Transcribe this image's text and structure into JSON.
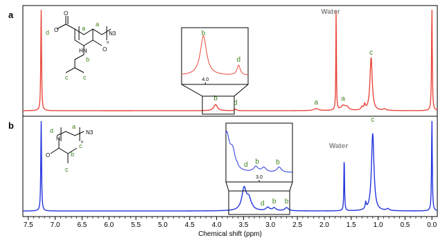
{
  "chart_data": {
    "type": "line",
    "xlabel": "Chemical shift (ppm)",
    "xlim": [
      7.6,
      -0.1
    ],
    "x_reversed": true,
    "grid": false,
    "x_ticks": [
      7.5,
      7.0,
      6.5,
      6.0,
      5.5,
      5.0,
      4.5,
      4.0,
      3.5,
      3.0,
      2.5,
      2.0,
      1.5,
      1.0,
      0.5,
      0.0
    ],
    "x_tick_labels": [
      "7.5",
      "7.0",
      "6.5",
      "6.0",
      "5.5",
      "5.0",
      "4.5",
      "4.0",
      "3.5",
      "3.0",
      "2.5",
      "2.0",
      "1.5",
      "1.0",
      "0.5",
      "0.0"
    ],
    "panels": [
      {
        "label": "a",
        "color": "#e8473a",
        "peaks": [
          {
            "x": 7.26,
            "h": 1.0,
            "w": 0.008
          },
          {
            "x": 4.02,
            "h": 0.06,
            "w": 0.04
          },
          {
            "x": 3.65,
            "h": 0.015,
            "w": 0.02
          },
          {
            "x": 2.15,
            "h": 0.02,
            "w": 0.05
          },
          {
            "x": 1.65,
            "h": 0.045,
            "w": 0.05
          },
          {
            "x": 1.58,
            "h": 0.03,
            "w": 0.04
          },
          {
            "x": 1.78,
            "h": 1.0,
            "w": 0.006
          },
          {
            "x": 1.3,
            "h": 0.03,
            "w": 0.02
          },
          {
            "x": 1.25,
            "h": 0.05,
            "w": 0.015
          },
          {
            "x": 1.13,
            "h": 0.52,
            "w": 0.025
          },
          {
            "x": 0.88,
            "h": 0.015,
            "w": 0.03
          },
          {
            "x": 0.0,
            "h": 1.0,
            "w": 0.008
          }
        ],
        "annotations": [
          {
            "text": "Water",
            "x": 1.78,
            "kind": "label-gray"
          },
          {
            "text": "b",
            "x": 4.02,
            "kind": "label"
          },
          {
            "text": "d",
            "x": 3.65,
            "kind": "label"
          },
          {
            "text": "a",
            "x": 2.15,
            "kind": "label"
          },
          {
            "text": "a",
            "x": 1.65,
            "kind": "label"
          },
          {
            "text": "c",
            "x": 1.13,
            "kind": "label"
          }
        ],
        "inset": {
          "xlim": [
            4.25,
            3.55
          ],
          "tick": 4.0,
          "tick_label": "4.0",
          "peak_labels": [
            {
              "text": "b",
              "x": 4.02
            },
            {
              "text": "d",
              "x": 3.65
            }
          ]
        }
      },
      {
        "label": "b",
        "color": "#2233dd",
        "peaks": [
          {
            "x": 7.26,
            "h": 1.0,
            "w": 0.008
          },
          {
            "x": 3.49,
            "h": 0.24,
            "w": 0.05
          },
          {
            "x": 3.4,
            "h": 0.12,
            "w": 0.05
          },
          {
            "x": 3.33,
            "h": 0.01,
            "w": 0.01
          },
          {
            "x": 3.05,
            "h": 0.035,
            "w": 0.04
          },
          {
            "x": 2.93,
            "h": 0.03,
            "w": 0.04
          },
          {
            "x": 2.7,
            "h": 0.035,
            "w": 0.04
          },
          {
            "x": 1.63,
            "h": 0.6,
            "w": 0.007
          },
          {
            "x": 1.23,
            "h": 0.07,
            "w": 0.012
          },
          {
            "x": 1.1,
            "h": 0.85,
            "w": 0.028
          },
          {
            "x": 0.82,
            "h": 0.02,
            "w": 0.03
          },
          {
            "x": 0.0,
            "h": 1.0,
            "w": 0.008
          }
        ],
        "annotations": [
          {
            "text": "Water",
            "x": 1.63,
            "kind": "label-gray"
          },
          {
            "text": "a",
            "x": 3.49,
            "kind": "label"
          },
          {
            "text": "d",
            "x": 3.15,
            "kind": "label"
          },
          {
            "text": "b",
            "x": 2.93,
            "kind": "label"
          },
          {
            "text": "b",
            "x": 2.7,
            "kind": "label"
          },
          {
            "text": "c",
            "x": 1.1,
            "kind": "label"
          }
        ],
        "inset": {
          "xlim": [
            3.5,
            2.5
          ],
          "tick": 3.0,
          "tick_label": "3.0",
          "peak_labels": [
            {
              "text": "d",
              "x": 3.2
            },
            {
              "text": "b",
              "x": 3.03
            },
            {
              "text": "b",
              "x": 2.72
            }
          ]
        }
      }
    ],
    "structures": [
      {
        "panel": "a",
        "labels": [
          "d",
          "a",
          "a",
          "N3",
          "n",
          "b",
          "c",
          "c"
        ],
        "atoms": [
          "O",
          "O",
          "HN",
          "O"
        ]
      },
      {
        "panel": "b",
        "labels": [
          "d",
          "a",
          "N3",
          "n",
          "b",
          "c",
          "c"
        ],
        "atoms": [
          "N",
          "O"
        ]
      }
    ],
    "colors": {
      "label_green": "#3f7f1f",
      "water_gray": "#8a8a8a",
      "axis": "#000000"
    }
  }
}
